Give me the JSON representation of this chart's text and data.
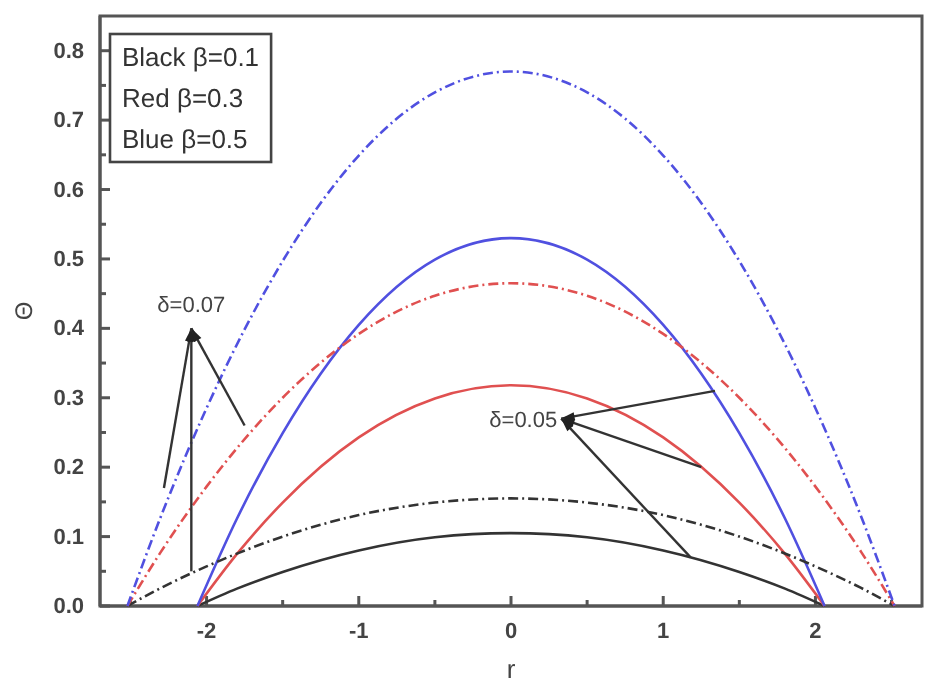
{
  "chart_data": {
    "type": "line",
    "xlabel": "r",
    "ylabel": "Θ",
    "xlim": [
      -2.7,
      2.7
    ],
    "ylim": [
      0,
      0.85
    ],
    "xticks": [
      {
        "value": -2.5,
        "label": null
      },
      -2,
      {
        "value": -1.5,
        "label": null
      },
      -1,
      {
        "value": -0.5,
        "label": null
      },
      0,
      {
        "value": 0.5,
        "label": null
      },
      1,
      {
        "value": 1.5,
        "label": null
      },
      2,
      {
        "value": 2.5,
        "label": null
      }
    ],
    "yticks": [
      {
        "value": 0,
        "label": "0.0"
      },
      {
        "value": 0.05,
        "label": null
      },
      0.1,
      {
        "value": 0.15,
        "label": null
      },
      0.2,
      {
        "value": 0.25,
        "label": null
      },
      0.3,
      {
        "value": 0.35,
        "label": null
      },
      0.4,
      {
        "value": 0.45,
        "label": null
      },
      0.5,
      {
        "value": 0.55,
        "label": null
      },
      0.6,
      {
        "value": 0.65,
        "label": null
      },
      0.7,
      {
        "value": 0.75,
        "label": null
      },
      0.8
    ],
    "grid": false,
    "marker": "none",
    "series": [
      {
        "color": "#333333",
        "line_style": "solid",
        "x": [
          -2.06,
          -1.8,
          -1.5,
          -1,
          -0.5,
          0,
          0.5,
          1,
          1.5,
          1.8,
          2.06
        ],
        "values": [
          0,
          0.025,
          0.049,
          0.08,
          0.099,
          0.105,
          0.099,
          0.08,
          0.049,
          0.025,
          0
        ]
      },
      {
        "color": "#e05050",
        "line_style": "solid",
        "x": [
          -2.06,
          -1.8,
          -1.5,
          -1,
          -0.5,
          0,
          0.5,
          1,
          1.5,
          1.8,
          2.06
        ],
        "values": [
          0,
          0.075,
          0.149,
          0.243,
          0.299,
          0.318,
          0.299,
          0.243,
          0.149,
          0.075,
          0
        ]
      },
      {
        "color": "#5050e0",
        "line_style": "solid",
        "x": [
          -2.06,
          -1.8,
          -1.5,
          -1,
          -0.5,
          0,
          0.5,
          1,
          1.5,
          1.8,
          2.06
        ],
        "values": [
          0,
          0.126,
          0.249,
          0.405,
          0.499,
          0.53,
          0.499,
          0.405,
          0.249,
          0.126,
          0
        ]
      },
      {
        "color": "#333333",
        "line_style": "dashed",
        "x": [
          -2.52,
          -2.3,
          -2,
          -1.5,
          -1,
          -0.5,
          0,
          0.5,
          1,
          1.5,
          2,
          2.3,
          2.52
        ],
        "values": [
          0,
          0.026,
          0.057,
          0.1,
          0.131,
          0.149,
          0.155,
          0.149,
          0.131,
          0.1,
          0.057,
          0.026,
          0
        ]
      },
      {
        "color": "#e05050",
        "line_style": "dashed",
        "x": [
          -2.52,
          -2.3,
          -2,
          -1.5,
          -1,
          -0.5,
          0,
          0.5,
          1,
          1.5,
          2,
          2.3,
          2.52
        ],
        "values": [
          0,
          0.078,
          0.172,
          0.3,
          0.392,
          0.447,
          0.465,
          0.447,
          0.392,
          0.3,
          0.172,
          0.078,
          0
        ]
      },
      {
        "color": "#5050e0",
        "line_style": "dashed",
        "x": [
          -2.52,
          -2.3,
          -2,
          -1.5,
          -1,
          -0.5,
          0,
          0.5,
          1,
          1.5,
          2,
          2.3,
          2.52
        ],
        "values": [
          0,
          0.129,
          0.285,
          0.497,
          0.649,
          0.74,
          0.77,
          0.74,
          0.649,
          0.497,
          0.285,
          0.129,
          0
        ]
      }
    ],
    "annotations": [
      "Black β=0.1",
      "Red  β=0.3",
      "Blue  β=0.5",
      {
        "text": "δ=0.07",
        "x": -1.75,
        "y": 0.26
      },
      {
        "text": "δ=0.05",
        "x": 1.25,
        "y": 0.2
      }
    ]
  }
}
